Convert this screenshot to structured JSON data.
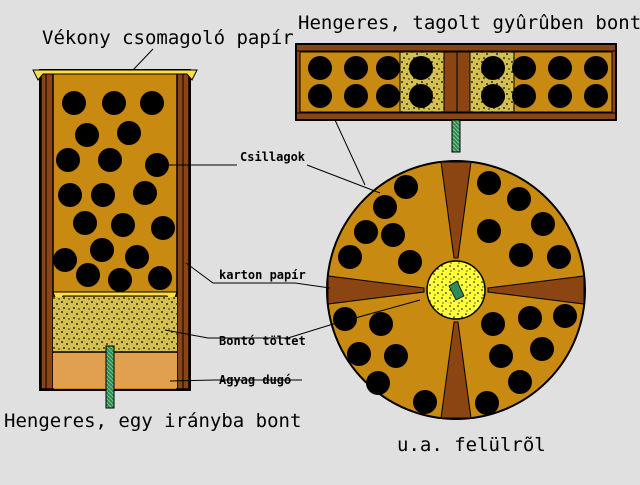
{
  "labels": {
    "title_left_top": "Vékony csomagoló papír",
    "title_right_top": "Hengeres, tagolt gyûrûben bont",
    "csillagok": "Csillagok",
    "karton_papir": "karton papír",
    "bonto_toltet": "Bontó töltet",
    "agyag_dugo": "Agyag dugó",
    "title_left_bottom": "Hengeres, egy irányba bont",
    "title_right_bottom": "u.a. felülrõl"
  },
  "colors": {
    "background": "#e0e0e0",
    "casing": "#c88a10",
    "tube_wall": "#8b4513",
    "star": "#000000",
    "burst_charge": "#d4c050",
    "core": "#ffff40",
    "clay_plug": "#e0a050",
    "fuse": "#2e8b57",
    "paper": "#ffe040"
  }
}
